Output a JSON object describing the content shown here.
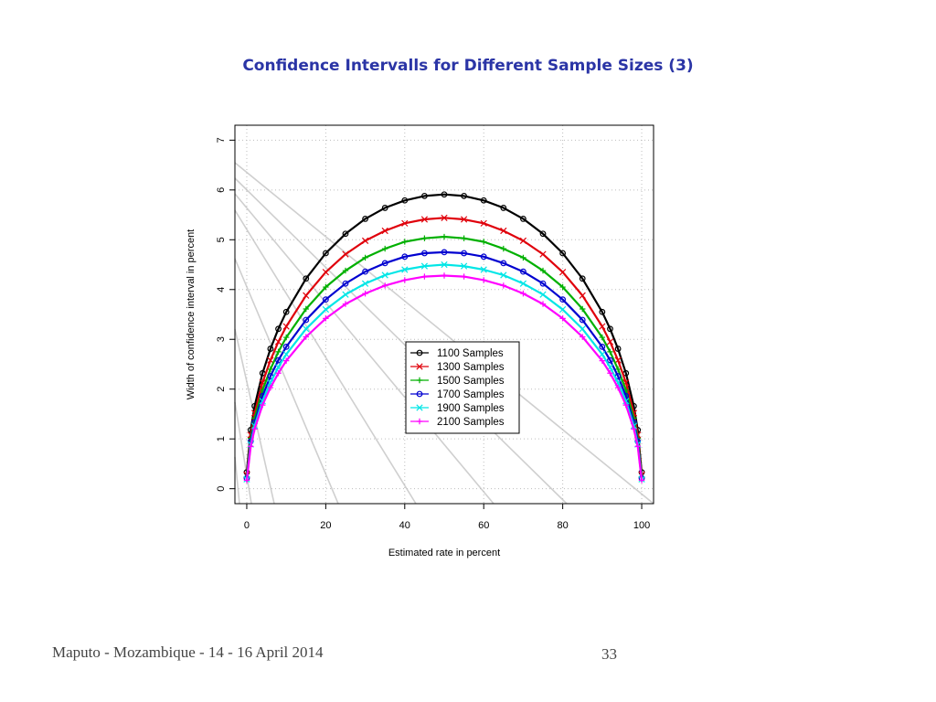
{
  "slide": {
    "title": "Confidence Intervalls for Different Sample Sizes (3)",
    "footer": "Maputo - Mozambique - 14 - 16 April 2014",
    "page_number": "33"
  },
  "chart_data": {
    "type": "line",
    "title": "",
    "xlabel": "Estimated rate in percent",
    "ylabel": "Width of confidence interval in percent",
    "xlim": [
      -3,
      103
    ],
    "ylim": [
      -0.3,
      7.3
    ],
    "xticks": [
      0,
      20,
      40,
      60,
      80,
      100
    ],
    "yticks": [
      0,
      1,
      2,
      3,
      4,
      5,
      6,
      7
    ],
    "grid": true,
    "legend_position": "center",
    "x": [
      0,
      1,
      2,
      4,
      6,
      8,
      10,
      15,
      20,
      25,
      30,
      35,
      40,
      45,
      50,
      55,
      60,
      65,
      70,
      75,
      80,
      85,
      90,
      92,
      94,
      96,
      98,
      99,
      100
    ],
    "series": [
      {
        "name": "1100 Samples",
        "color": "#000000",
        "marker": "circle",
        "values": [
          0.33,
          1.18,
          1.66,
          2.32,
          2.81,
          3.21,
          3.55,
          4.22,
          4.73,
          5.12,
          5.42,
          5.64,
          5.79,
          5.88,
          5.91,
          5.88,
          5.79,
          5.64,
          5.42,
          5.12,
          4.73,
          4.22,
          3.55,
          3.21,
          2.81,
          2.32,
          1.66,
          1.18,
          0.33
        ]
      },
      {
        "name": "1300 Samples",
        "color": "#e0000b",
        "marker": "cross",
        "values": [
          0.28,
          1.08,
          1.52,
          2.13,
          2.58,
          2.95,
          3.26,
          3.88,
          4.35,
          4.71,
          4.98,
          5.18,
          5.33,
          5.41,
          5.44,
          5.41,
          5.33,
          5.18,
          4.98,
          4.71,
          4.35,
          3.88,
          3.26,
          2.95,
          2.58,
          2.13,
          1.52,
          1.08,
          0.28
        ]
      },
      {
        "name": "1500 Samples",
        "color": "#00b000",
        "marker": "plus",
        "values": [
          0.24,
          1.01,
          1.42,
          1.98,
          2.4,
          2.75,
          3.04,
          3.61,
          4.05,
          4.38,
          4.64,
          4.82,
          4.96,
          5.03,
          5.06,
          5.03,
          4.96,
          4.82,
          4.64,
          4.38,
          4.05,
          3.61,
          3.04,
          2.75,
          2.4,
          1.98,
          1.42,
          1.01,
          0.24
        ]
      },
      {
        "name": "1700 Samples",
        "color": "#0000d0",
        "marker": "circle",
        "values": [
          0.21,
          0.95,
          1.33,
          1.86,
          2.26,
          2.58,
          2.85,
          3.39,
          3.8,
          4.12,
          4.36,
          4.53,
          4.66,
          4.73,
          4.75,
          4.73,
          4.66,
          4.53,
          4.36,
          4.12,
          3.8,
          3.39,
          2.85,
          2.58,
          2.26,
          1.86,
          1.33,
          0.95,
          0.21
        ]
      },
      {
        "name": "1900 Samples",
        "color": "#00e6e6",
        "marker": "x",
        "values": [
          0.19,
          0.89,
          1.26,
          1.76,
          2.13,
          2.44,
          2.7,
          3.21,
          3.6,
          3.9,
          4.12,
          4.29,
          4.4,
          4.47,
          4.5,
          4.47,
          4.4,
          4.29,
          4.12,
          3.9,
          3.6,
          3.21,
          2.7,
          2.44,
          2.13,
          1.76,
          1.26,
          0.89,
          0.19
        ]
      },
      {
        "name": "2100 Samples",
        "color": "#ff00ff",
        "marker": "plus",
        "values": [
          0.17,
          0.85,
          1.2,
          1.68,
          2.03,
          2.32,
          2.57,
          3.05,
          3.42,
          3.71,
          3.92,
          4.08,
          4.19,
          4.26,
          4.28,
          4.26,
          4.19,
          4.08,
          3.92,
          3.71,
          3.42,
          3.05,
          2.57,
          2.32,
          2.03,
          1.68,
          1.2,
          0.85,
          0.17
        ]
      }
    ]
  }
}
